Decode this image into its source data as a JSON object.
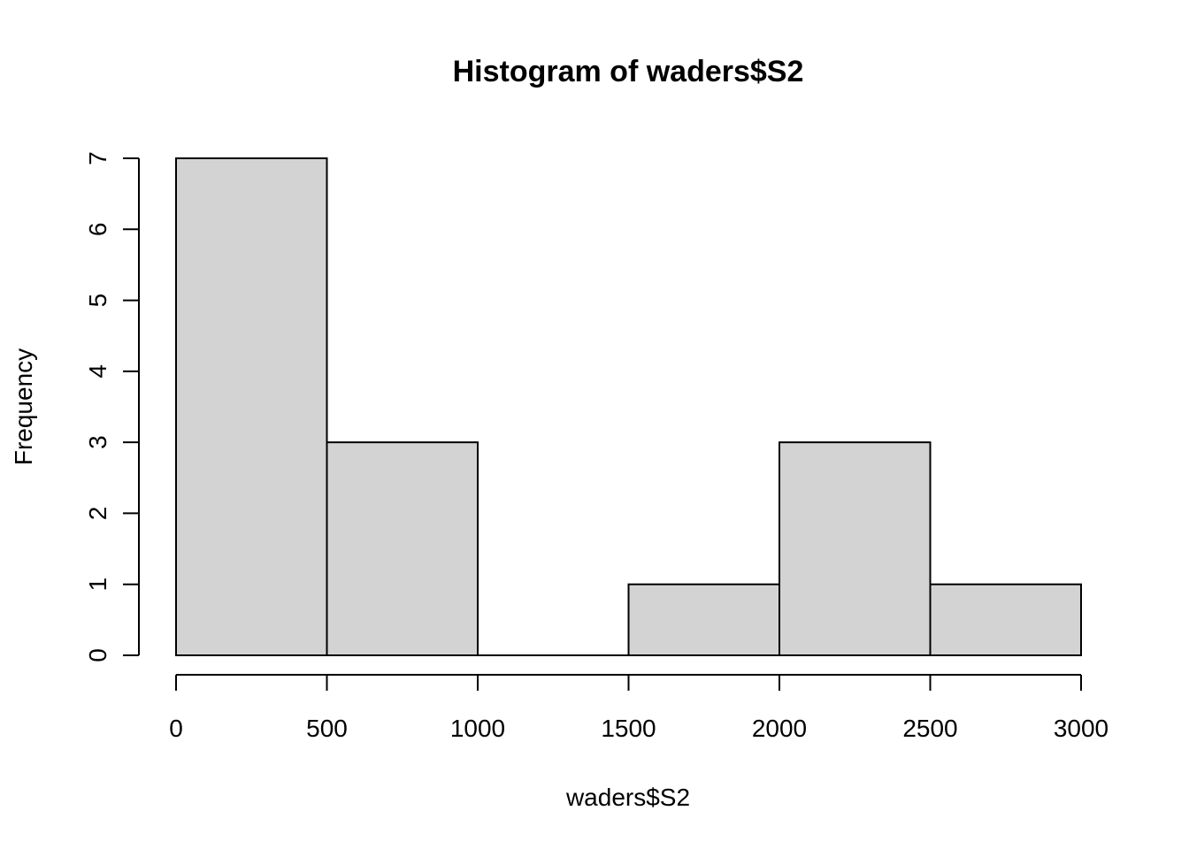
{
  "chart_data": {
    "type": "bar",
    "title": "Histogram of waders$S2",
    "xlabel": "waders$S2",
    "ylabel": "Frequency",
    "bins": [
      {
        "from": 0,
        "to": 500,
        "count": 7
      },
      {
        "from": 500,
        "to": 1000,
        "count": 3
      },
      {
        "from": 1000,
        "to": 1500,
        "count": 0
      },
      {
        "from": 1500,
        "to": 2000,
        "count": 1
      },
      {
        "from": 2000,
        "to": 2500,
        "count": 3
      },
      {
        "from": 2500,
        "to": 3000,
        "count": 1
      }
    ],
    "xlim": [
      0,
      3000
    ],
    "ylim": [
      0,
      7
    ],
    "x_ticks": [
      "0",
      "500",
      "1000",
      "1500",
      "2000",
      "2500",
      "3000"
    ],
    "y_ticks": [
      "0",
      "1",
      "2",
      "3",
      "4",
      "5",
      "6",
      "7"
    ],
    "bar_fill": "#d3d3d3",
    "bar_stroke": "#000000",
    "grid": false
  }
}
